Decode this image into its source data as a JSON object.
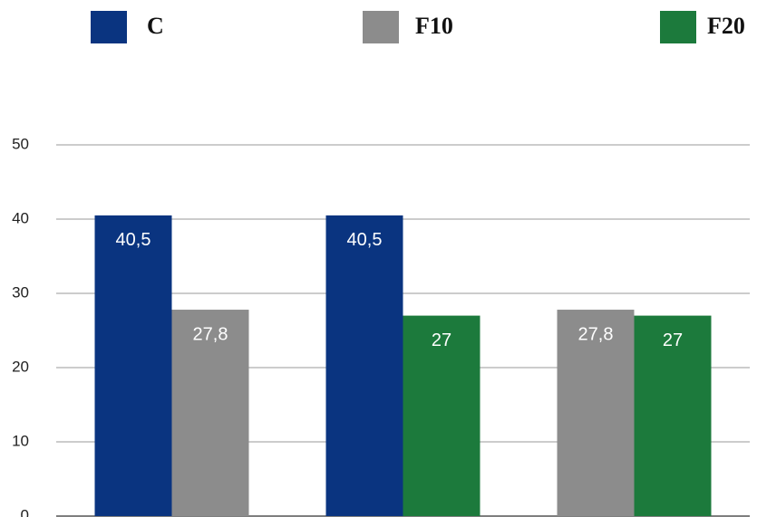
{
  "chart_data": {
    "type": "bar",
    "categories": [
      null,
      null,
      null
    ],
    "series": [
      {
        "name": "C",
        "color": "#0a3480",
        "values": [
          40.5,
          40.5,
          null
        ],
        "value_labels": [
          "40,5",
          "40,5",
          null
        ]
      },
      {
        "name": "F10",
        "color": "#8c8c8c",
        "values": [
          27.8,
          null,
          27.8
        ],
        "value_labels": [
          "27,8",
          null,
          "27,8"
        ]
      },
      {
        "name": "F20",
        "color": "#1c7a3c",
        "values": [
          null,
          27,
          27
        ],
        "value_labels": [
          null,
          "27",
          "27"
        ]
      }
    ],
    "ylim": [
      0,
      50
    ],
    "yticks": [
      0,
      10,
      20,
      30,
      40,
      50
    ],
    "grid": true
  }
}
